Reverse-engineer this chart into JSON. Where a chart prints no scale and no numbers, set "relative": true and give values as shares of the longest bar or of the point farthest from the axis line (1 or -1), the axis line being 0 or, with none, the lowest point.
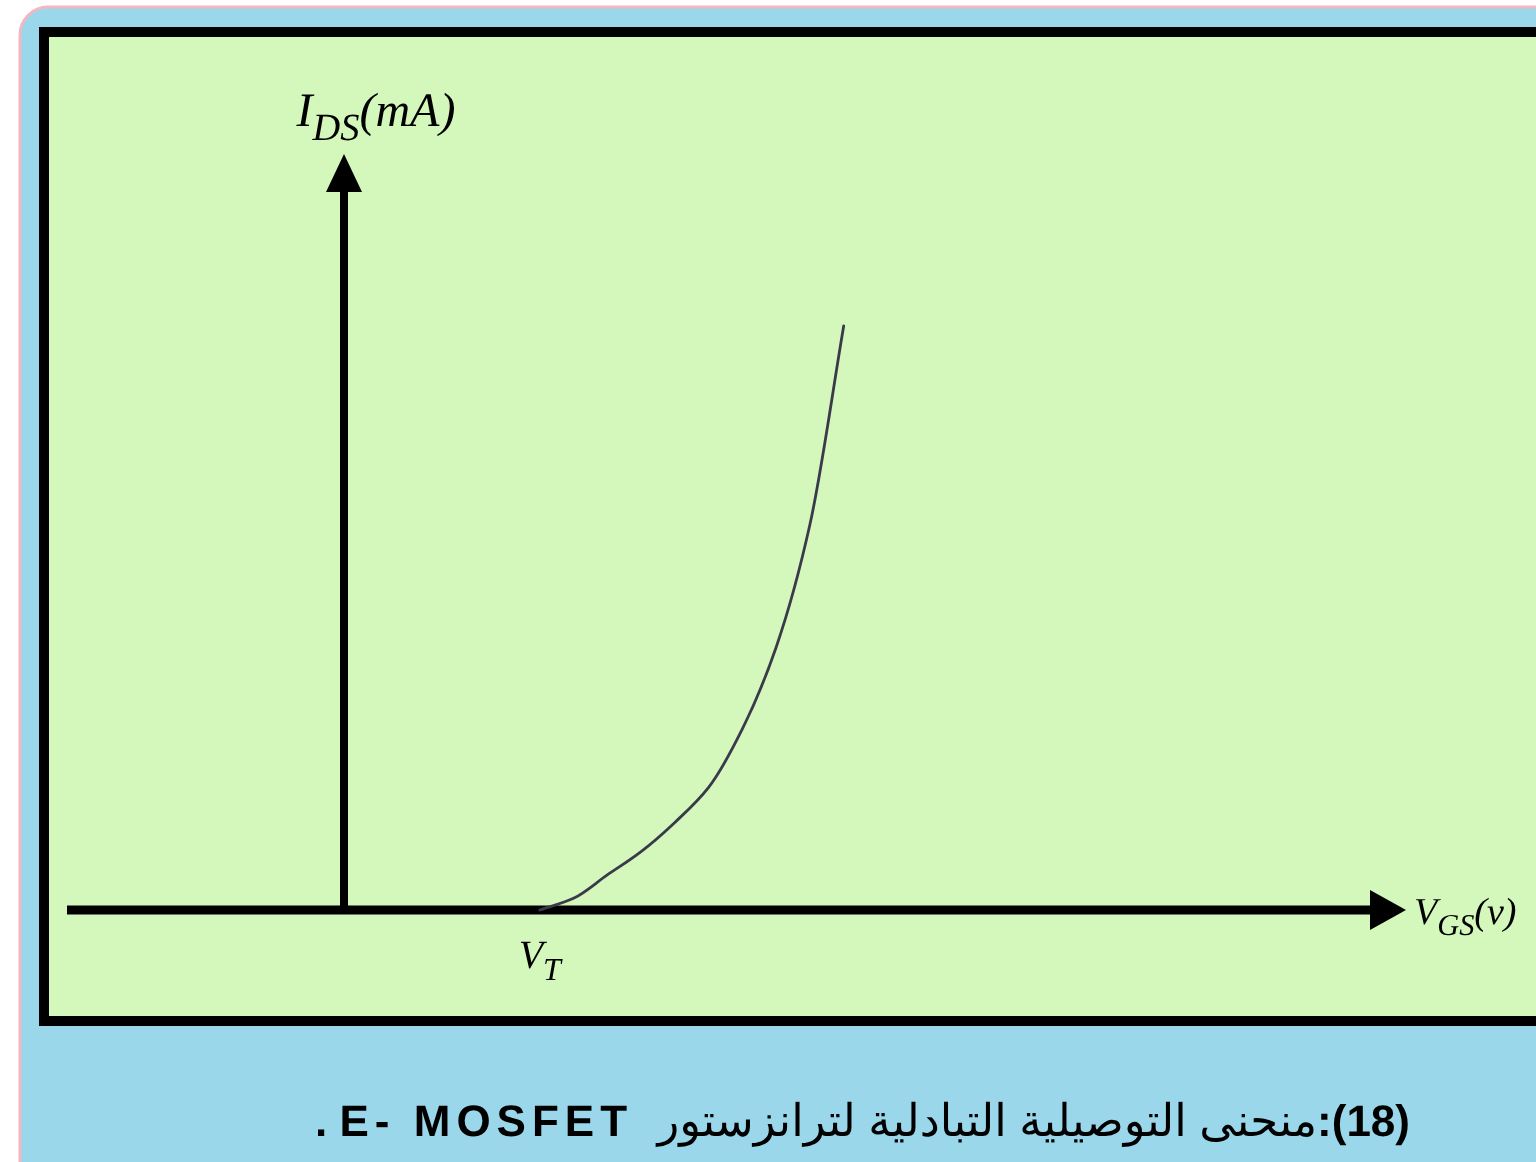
{
  "chart_data": {
    "type": "line",
    "relative": true,
    "xlabel": "V$_{GS}$(v)",
    "ylabel": "I$_{DS}$(mA)",
    "categories": [
      null,
      null,
      null,
      null,
      null,
      null,
      null,
      null,
      null,
      null,
      null,
      null,
      null,
      null,
      null,
      null,
      null,
      null,
      null,
      null,
      null,
      null,
      null,
      null,
      null,
      null,
      null,
      null,
      null,
      null,
      null,
      null,
      null,
      null,
      null,
      null,
      null,
      null,
      null,
      null
    ],
    "series": [
      {
        "color": "#3a3a4a",
        "values": [
          null,
          null,
          null,
          null,
          null,
          null,
          null,
          null,
          null,
          null,
          null,
          null,
          null,
          null,
          0,
          0.02,
          0.06,
          0.1,
          0.15,
          0.21,
          0.31,
          0.45,
          0.66,
          1,
          null,
          null,
          null,
          null,
          null,
          null,
          null,
          null,
          null,
          null,
          null,
          null,
          null,
          null,
          null,
          null
        ]
      }
    ],
    "annotations": [
      {
        "text": "V$_{T}$",
        "y": 0
      },
      "(18):منحنى التوصيلية التبادلية لترانزستور  E- MOSFET ."
    ]
  }
}
